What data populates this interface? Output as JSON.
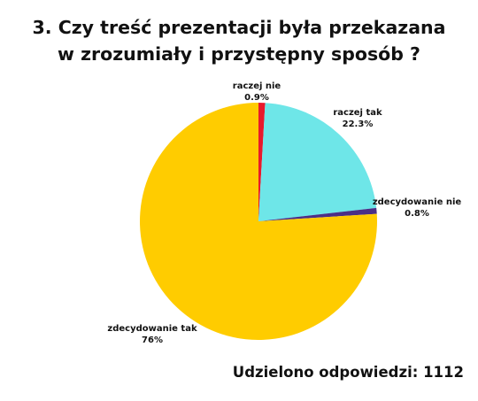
{
  "title": {
    "line1": "3.  Czy treść prezentacji była przekazana",
    "line2": "w zrozumiały i przystępny sposób ?"
  },
  "footer": {
    "responses": "Udzielono odpowiedzi: 1112"
  },
  "chart_data": {
    "type": "pie",
    "title": "3.  Czy treść prezentacji była przekazana w zrozumiały i przystępny sposób ?",
    "slices": [
      {
        "label": "raczej nie",
        "value_label": "0.9%",
        "value": 0.9,
        "color": "#e8192c"
      },
      {
        "label": "raczej tak",
        "value_label": "22.3%",
        "value": 22.3,
        "color": "#6ee6e8"
      },
      {
        "label": "zdecydowanie nie",
        "value_label": "0.8%",
        "value": 0.8,
        "color": "#4b2f87"
      },
      {
        "label": "zdecydowanie tak",
        "value_label": "76%",
        "value": 76,
        "color": "#ffcc00"
      }
    ]
  }
}
